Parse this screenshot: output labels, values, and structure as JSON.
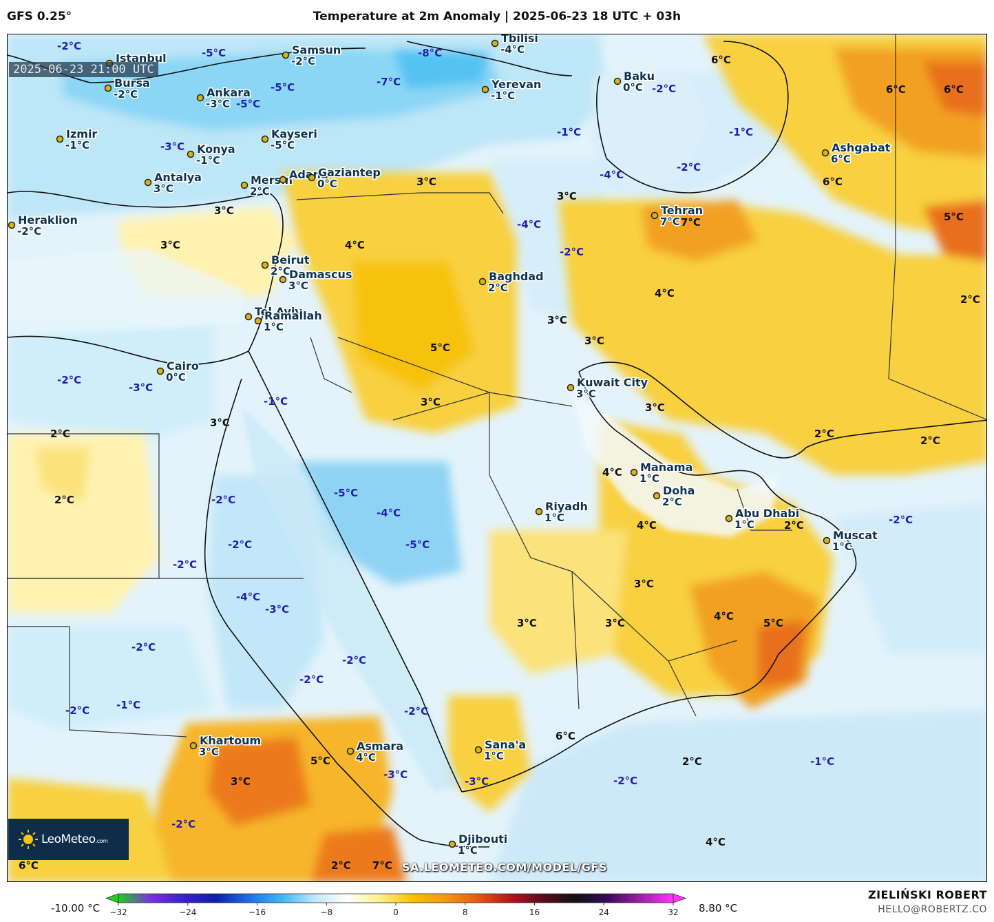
{
  "header": {
    "model": "GFS 0.25°",
    "title": "Temperature at 2m Anomaly | 2025-06-23 18 UTC + 03h"
  },
  "map": {
    "valid_time": "2025-06-23 21:00 UTC",
    "watermark": "SA.LEOMETEO.COM/MODEL/GFS",
    "logo": "LeoMeteo",
    "logo_suffix": ".com",
    "cities": [
      {
        "name": "Istanbul",
        "value": ""
      },
      {
        "name": "Samsun",
        "value": "-2°C"
      },
      {
        "name": "Tbilisi",
        "value": "-4°C"
      },
      {
        "name": "Baku",
        "value": "0°C"
      },
      {
        "name": "Bursa",
        "value": "-2°C"
      },
      {
        "name": "Ankara",
        "value": "-3°C"
      },
      {
        "name": "Yerevan",
        "value": "-1°C"
      },
      {
        "name": "Izmir",
        "value": "-1°C"
      },
      {
        "name": "Kayseri",
        "value": "-5°C"
      },
      {
        "name": "Konya",
        "value": "-1°C"
      },
      {
        "name": "Antalya",
        "value": "3°C"
      },
      {
        "name": "Mersin",
        "value": "2°C"
      },
      {
        "name": "Adana",
        "value": ""
      },
      {
        "name": "Gaziantep",
        "value": "0°C"
      },
      {
        "name": "Ashgabat",
        "value": "6°C"
      },
      {
        "name": "Tehran",
        "value": "7°C"
      },
      {
        "name": "Heraklion",
        "value": "-2°C"
      },
      {
        "name": "Beirut",
        "value": "2°C"
      },
      {
        "name": "Damascus",
        "value": "3°C"
      },
      {
        "name": "Baghdad",
        "value": "2°C"
      },
      {
        "name": "Tel Aviv",
        "value": ""
      },
      {
        "name": "Ramallah",
        "value": "1°C"
      },
      {
        "name": "Cairo",
        "value": "0°C"
      },
      {
        "name": "Kuwait City",
        "value": "3°C"
      },
      {
        "name": "Manama",
        "value": "1°C"
      },
      {
        "name": "Doha",
        "value": "2°C"
      },
      {
        "name": "Riyadh",
        "value": "1°C"
      },
      {
        "name": "Abu Dhabi",
        "value": "1°C"
      },
      {
        "name": "Muscat",
        "value": "1°C"
      },
      {
        "name": "Khartoum",
        "value": "3°C"
      },
      {
        "name": "Asmara",
        "value": "4°C"
      },
      {
        "name": "Sana'a",
        "value": "1°C"
      },
      {
        "name": "Djibouti",
        "value": "1°C"
      }
    ],
    "anomaly_labels": [
      {
        "text": "-2°C",
        "sign": "neg"
      },
      {
        "text": "-5°C",
        "sign": "neg"
      },
      {
        "text": "-8°C",
        "sign": "neg"
      },
      {
        "text": "6°C",
        "sign": "pos"
      },
      {
        "text": "6°C",
        "sign": "pos"
      },
      {
        "text": "6°C",
        "sign": "pos"
      },
      {
        "text": "-5°C",
        "sign": "neg"
      },
      {
        "text": "-7°C",
        "sign": "neg"
      },
      {
        "text": "-5°C",
        "sign": "neg"
      },
      {
        "text": "-2°C",
        "sign": "neg"
      },
      {
        "text": "-1°C",
        "sign": "neg"
      },
      {
        "text": "-1°C",
        "sign": "neg"
      },
      {
        "text": "-3°C",
        "sign": "neg"
      },
      {
        "text": "-2°C",
        "sign": "neg"
      },
      {
        "text": "-4°C",
        "sign": "neg"
      },
      {
        "text": "3°C",
        "sign": "pos"
      },
      {
        "text": "3°C",
        "sign": "pos"
      },
      {
        "text": "6°C",
        "sign": "pos"
      },
      {
        "text": "3°C",
        "sign": "pos"
      },
      {
        "text": "-4°C",
        "sign": "neg"
      },
      {
        "text": "7°C",
        "sign": "pos"
      },
      {
        "text": "5°C",
        "sign": "pos"
      },
      {
        "text": "3°C",
        "sign": "pos"
      },
      {
        "text": "4°C",
        "sign": "pos"
      },
      {
        "text": "-2°C",
        "sign": "neg"
      },
      {
        "text": "4°C",
        "sign": "pos"
      },
      {
        "text": "2°C",
        "sign": "pos"
      },
      {
        "text": "3°C",
        "sign": "pos"
      },
      {
        "text": "3°C",
        "sign": "pos"
      },
      {
        "text": "5°C",
        "sign": "pos"
      },
      {
        "text": "-2°C",
        "sign": "neg"
      },
      {
        "text": "-3°C",
        "sign": "neg"
      },
      {
        "text": "-1°C",
        "sign": "neg"
      },
      {
        "text": "3°C",
        "sign": "pos"
      },
      {
        "text": "3°C",
        "sign": "pos"
      },
      {
        "text": "3°C",
        "sign": "pos"
      },
      {
        "text": "2°C",
        "sign": "pos"
      },
      {
        "text": "2°C",
        "sign": "pos"
      },
      {
        "text": "2°C",
        "sign": "pos"
      },
      {
        "text": "-2°C",
        "sign": "neg"
      },
      {
        "text": "-5°C",
        "sign": "neg"
      },
      {
        "text": "-4°C",
        "sign": "neg"
      },
      {
        "text": "-5°C",
        "sign": "neg"
      },
      {
        "text": "4°C",
        "sign": "pos"
      },
      {
        "text": "2°C",
        "sign": "pos"
      },
      {
        "text": "-2°C",
        "sign": "neg"
      },
      {
        "text": "-2°C",
        "sign": "neg"
      },
      {
        "text": "-2°C",
        "sign": "neg"
      },
      {
        "text": "4°C",
        "sign": "pos"
      },
      {
        "text": "2°C",
        "sign": "pos"
      },
      {
        "text": "3°C",
        "sign": "pos"
      },
      {
        "text": "-4°C",
        "sign": "neg"
      },
      {
        "text": "-3°C",
        "sign": "neg"
      },
      {
        "text": "3°C",
        "sign": "pos"
      },
      {
        "text": "3°C",
        "sign": "pos"
      },
      {
        "text": "4°C",
        "sign": "pos"
      },
      {
        "text": "5°C",
        "sign": "pos"
      },
      {
        "text": "-2°C",
        "sign": "neg"
      },
      {
        "text": "-2°C",
        "sign": "neg"
      },
      {
        "text": "-2°C",
        "sign": "neg"
      },
      {
        "text": "-2°C",
        "sign": "neg"
      },
      {
        "text": "-1°C",
        "sign": "neg"
      },
      {
        "text": "-2°C",
        "sign": "neg"
      },
      {
        "text": "-3°C",
        "sign": "neg"
      },
      {
        "text": "5°C",
        "sign": "pos"
      },
      {
        "text": "3°C",
        "sign": "pos"
      },
      {
        "text": "6°C",
        "sign": "pos"
      },
      {
        "text": "-3°C",
        "sign": "neg"
      },
      {
        "text": "2°C",
        "sign": "pos"
      },
      {
        "text": "-1°C",
        "sign": "neg"
      },
      {
        "text": "-2°C",
        "sign": "neg"
      },
      {
        "text": "-2°C",
        "sign": "neg"
      },
      {
        "text": "6°C",
        "sign": "pos"
      },
      {
        "text": "2°C",
        "sign": "pos"
      },
      {
        "text": "7°C",
        "sign": "pos"
      },
      {
        "text": "4°C",
        "sign": "pos"
      },
      {
        "text": "-2°C",
        "sign": "neg"
      }
    ]
  },
  "colorbar": {
    "min_label": "-10.00 °C",
    "max_label": "8.80 °C",
    "ticks": [
      "−32",
      "−24",
      "−16",
      "−8",
      "0",
      "8",
      "16",
      "24",
      "32"
    ],
    "range": [
      -32,
      32
    ],
    "stops": [
      "#22cc22",
      "#7b2fe0",
      "#3a1fd0",
      "#0d1fa8",
      "#1f6fe8",
      "#38b7f5",
      "#bfe8f8",
      "#ffffff",
      "#ffef8a",
      "#f8c200",
      "#f39a12",
      "#e65a10",
      "#b8141a",
      "#5a0a20",
      "#111111",
      "#3a0a5a",
      "#a01ea8",
      "#ff33ff"
    ]
  },
  "footer": {
    "author": "ZIELIŃSKI ROBERT",
    "email": "HELLO@ROBERTZ.CO"
  },
  "colors": {
    "positive_label": "#111111",
    "negative_label": "#1f1fb0",
    "city_label": "#0e3450",
    "warm_fill": "#f7c910",
    "hot_fill": "#f1921a",
    "cool_fill": "#bde6f7",
    "cold_fill": "#6fcaf2"
  }
}
